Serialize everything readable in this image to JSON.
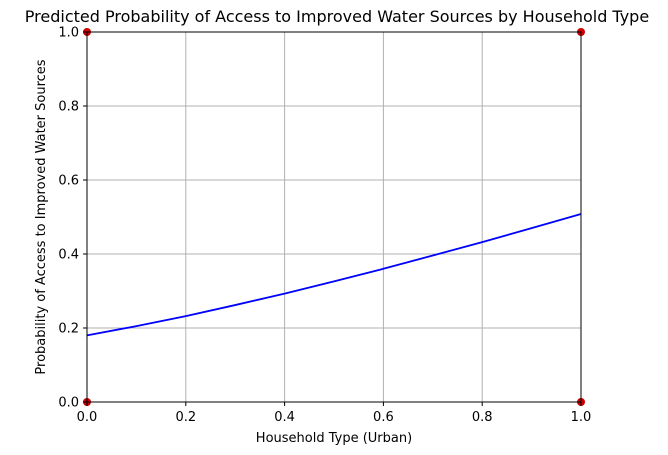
{
  "chart_data": {
    "type": "line",
    "title": "Predicted Probability of Access to Improved Water Sources by Household Type",
    "xlabel": "Household Type (Urban)",
    "ylabel": "Probability of Access to Improved Water Sources",
    "xlim": [
      0,
      1
    ],
    "ylim": [
      0,
      1
    ],
    "grid": true,
    "xticks": [
      "0.0",
      "0.2",
      "0.4",
      "0.6",
      "0.8",
      "1.0"
    ],
    "yticks": [
      "0.0",
      "0.2",
      "0.4",
      "0.6",
      "0.8",
      "1.0"
    ],
    "series": [
      {
        "kind": "line",
        "color": "#0000ff",
        "x": [
          0.0,
          0.1,
          0.2,
          0.3,
          0.4,
          0.5,
          0.6,
          0.7,
          0.8,
          0.9,
          1.0
        ],
        "y": [
          0.18,
          0.205,
          0.232,
          0.262,
          0.293,
          0.326,
          0.36,
          0.396,
          0.432,
          0.47,
          0.508
        ]
      },
      {
        "kind": "scatter",
        "color": "#cc0000",
        "x": [
          0,
          0,
          1,
          1
        ],
        "y": [
          0,
          1,
          0,
          1
        ]
      }
    ]
  }
}
